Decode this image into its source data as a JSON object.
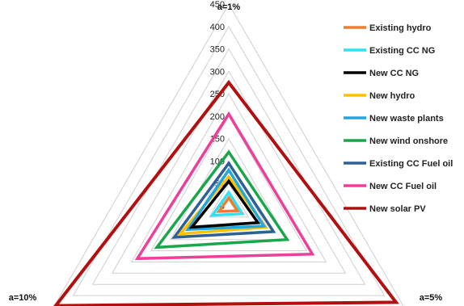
{
  "chart_data": {
    "type": "radar",
    "axes": [
      "a=1%",
      "a=5%",
      "a=10%"
    ],
    "ticks": [
      0,
      50,
      100,
      150,
      200,
      250,
      300,
      350,
      400,
      450
    ],
    "rmax": 450,
    "grid": true,
    "legend_position": "right",
    "series": [
      {
        "name": "Existing hydro",
        "color": "#ed7d31",
        "values": [
          18,
          22,
          25
        ]
      },
      {
        "name": "Existing CC NG",
        "color": "#33e0f0",
        "values": [
          30,
          35,
          42
        ]
      },
      {
        "name": "New CC NG",
        "color": "#000000",
        "values": [
          55,
          75,
          95
        ]
      },
      {
        "name": "New hydro",
        "color": "#ffc000",
        "values": [
          65,
          95,
          125
        ]
      },
      {
        "name": "New waste plants",
        "color": "#1fa8e0",
        "values": [
          80,
          90,
          105
        ]
      },
      {
        "name": "New wind onshore",
        "color": "#1aa64b",
        "values": [
          120,
          150,
          185
        ]
      },
      {
        "name": "Existing CC Fuel oil",
        "color": "#2e6096",
        "values": [
          95,
          115,
          140
        ]
      },
      {
        "name": "New CC Fuel oil",
        "color": "#ee3f9b",
        "values": [
          205,
          215,
          235
        ]
      },
      {
        "name": "New solar PV",
        "color": "#b40f0f",
        "values": [
          275,
          430,
          445
        ]
      }
    ]
  }
}
